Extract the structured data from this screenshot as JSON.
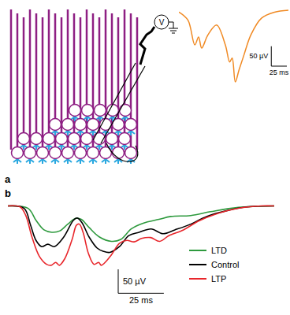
{
  "chart_data": [
    {
      "type": "line",
      "panel_label": "a",
      "annotations": [
        "V"
      ],
      "color": "#f08a24",
      "tick_labels": false,
      "x": [
        0,
        14,
        25,
        31,
        36,
        46,
        60,
        74,
        81,
        85,
        90,
        96,
        104,
        115,
        132,
        153,
        176
      ],
      "values": [
        0,
        -20,
        -82,
        -62,
        -90,
        -57,
        -32,
        -82,
        -125,
        -115,
        -175,
        -145,
        -107,
        -57,
        -15,
        0,
        5
      ],
      "xlim": [
        0,
        176
      ],
      "ylim": [
        -180,
        10
      ],
      "scale_bar": {
        "x": 25,
        "y": 50,
        "x_label": "25 ms",
        "y_label": "50 µV"
      }
    },
    {
      "type": "line",
      "panel_label": "b",
      "tick_labels": false,
      "series": [
        {
          "name": "LTD",
          "color": "#2e9a3e",
          "x": [
            0,
            10.9,
            15.2,
            19.6,
            23.9,
            28.3,
            32.6,
            37,
            40,
            44.3,
            50,
            56.5,
            61.7,
            67.4,
            73.9,
            82.6,
            89.1,
            100,
            110.9,
            126.1,
            145.7
          ],
          "values": [
            0,
            -5,
            -30,
            -50,
            -55,
            -52,
            -38,
            -26,
            -28,
            -45,
            -65,
            -74,
            -70,
            -48,
            -36,
            -28,
            -22,
            -20,
            -12,
            -3,
            0
          ]
        },
        {
          "name": "Control",
          "color": "#000000",
          "x": [
            0,
            8.7,
            12.2,
            15.2,
            18.3,
            21.7,
            25.2,
            30.4,
            35.7,
            37.8,
            40.4,
            44.3,
            48.7,
            52.2,
            55.7,
            60.9,
            66.1,
            71.7,
            78.3,
            84.8,
            91.3,
            100,
            108.7,
            119.6,
            130.4,
            145.7
          ],
          "values": [
            0,
            -5,
            -40,
            -72,
            -85,
            -80,
            -85,
            -65,
            -30,
            -25,
            -35,
            -65,
            -88,
            -95,
            -97,
            -85,
            -62,
            -55,
            -48,
            -58,
            -50,
            -38,
            -22,
            -10,
            -2,
            0
          ]
        },
        {
          "name": "LTP",
          "color": "#e8262b",
          "x": [
            0,
            6.5,
            9.6,
            13,
            17,
            21,
            23.5,
            26,
            28,
            31,
            35,
            37.4,
            39,
            41,
            44,
            47,
            49.6,
            51,
            56,
            61,
            65,
            69,
            73,
            78,
            83,
            88,
            96,
            104,
            113,
            126,
            139,
            146
          ],
          "values": [
            0,
            -2,
            -20,
            -65,
            -105,
            -122,
            -124,
            -118,
            -124,
            -110,
            -70,
            -40,
            -38,
            -55,
            -100,
            -122,
            -118,
            -124,
            -105,
            -78,
            -72,
            -75,
            -68,
            -66,
            -74,
            -62,
            -50,
            -32,
            -18,
            -5,
            0,
            0
          ]
        }
      ],
      "xlim": [
        0,
        146
      ],
      "ylim": [
        -130,
        5
      ],
      "scale_bar": {
        "x": 25,
        "y": 50,
        "x_label": "25 ms",
        "y_label": "50 µV"
      }
    }
  ]
}
